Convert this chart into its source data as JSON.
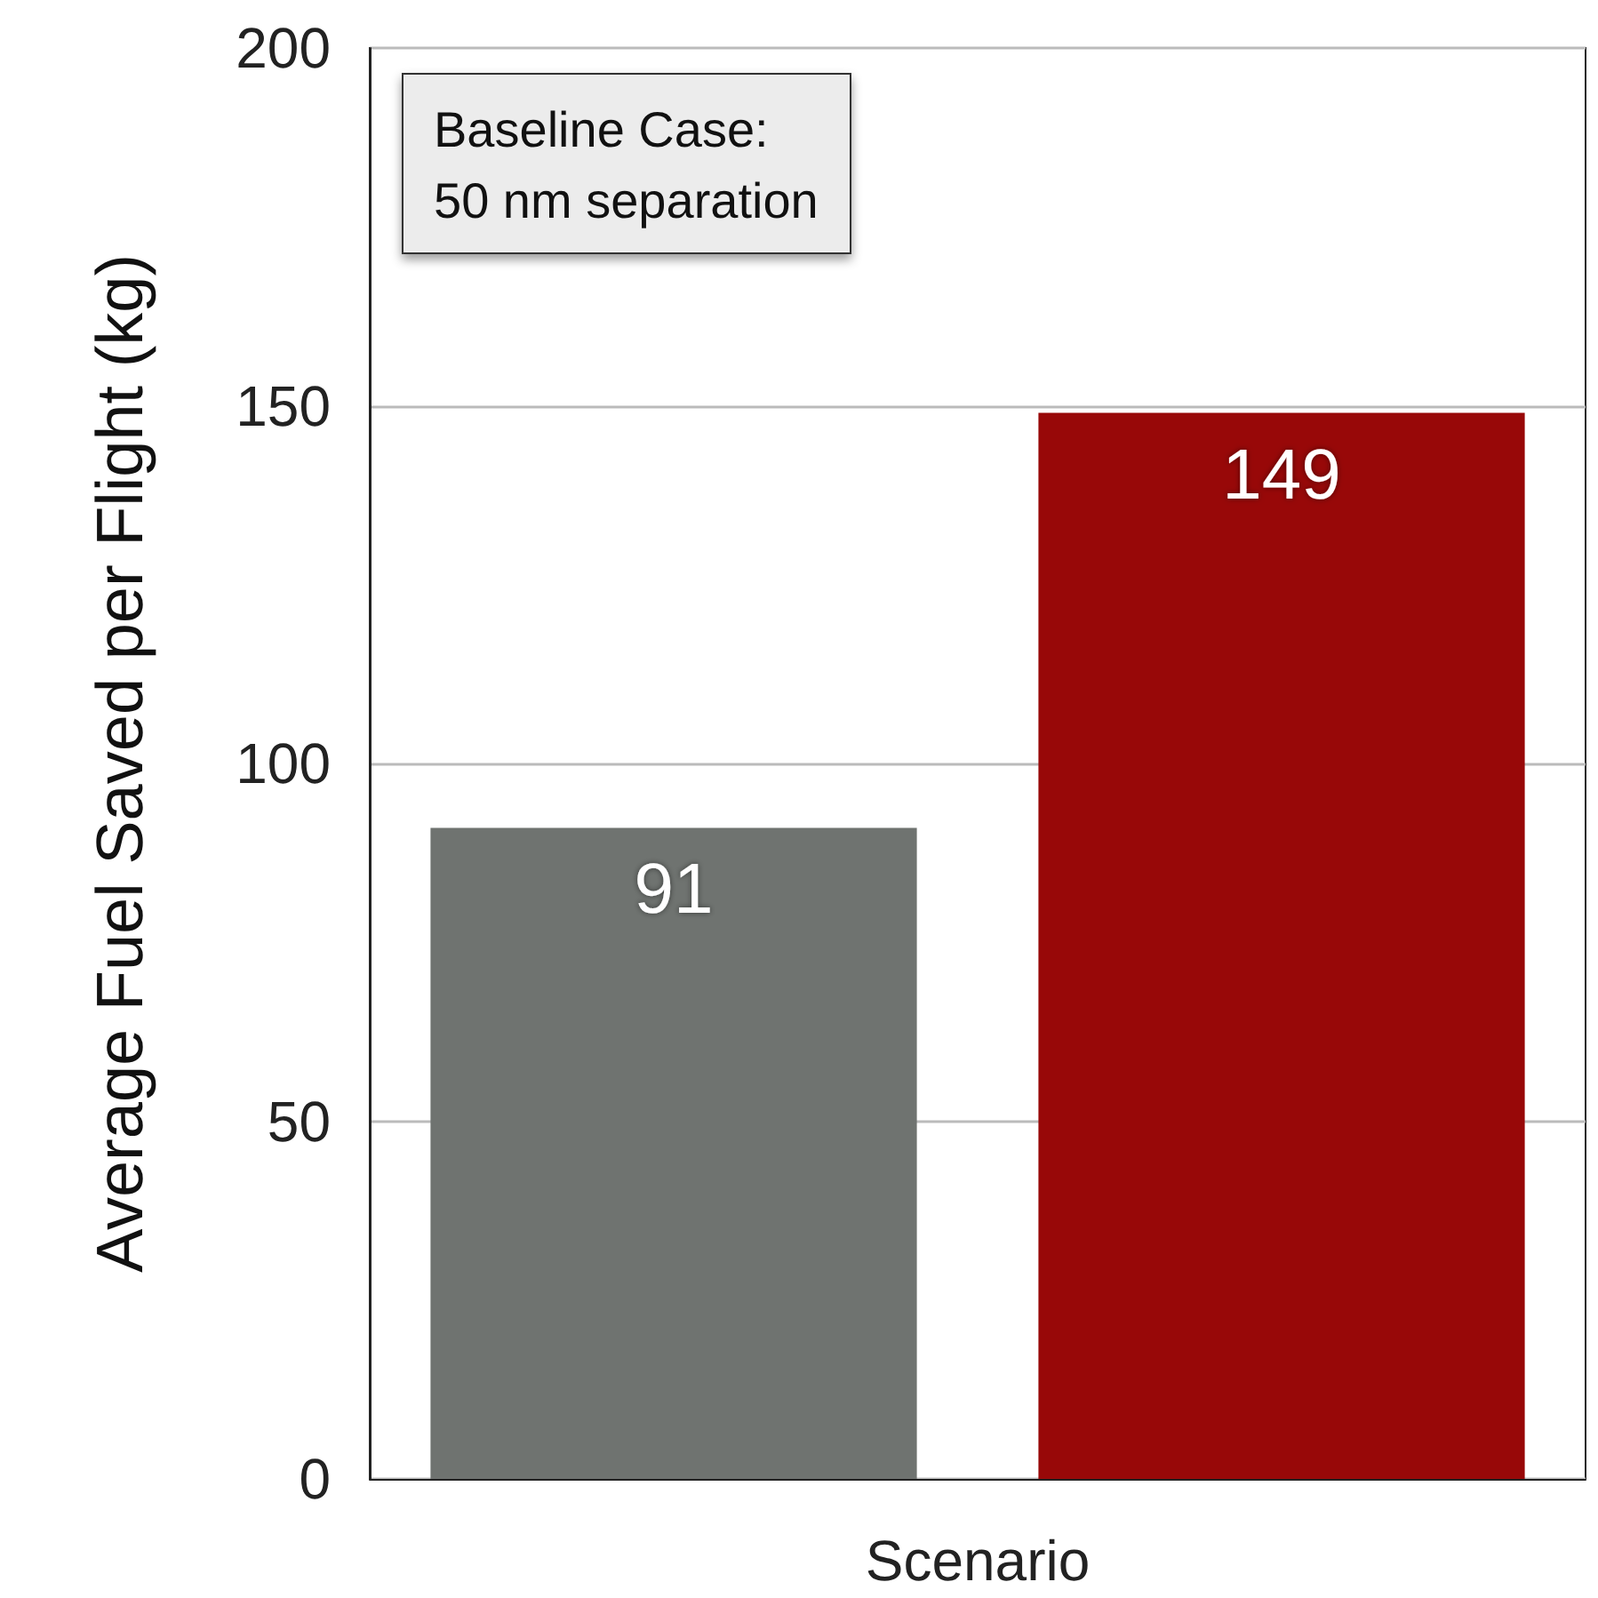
{
  "chart_data": {
    "type": "bar",
    "xlabel": "Scenario",
    "ylabel": "Average Fuel Saved per Flight (kg)",
    "categories": [
      null,
      null
    ],
    "values": [
      91,
      149
    ],
    "colors": [
      "#6f7370",
      "#980808"
    ],
    "ylim": [
      0,
      200
    ],
    "yticks": [
      0,
      50,
      100,
      150,
      200
    ],
    "grid": "y",
    "data_labels": true,
    "annotations": [
      "Baseline Case:\n50 nm separation"
    ]
  }
}
